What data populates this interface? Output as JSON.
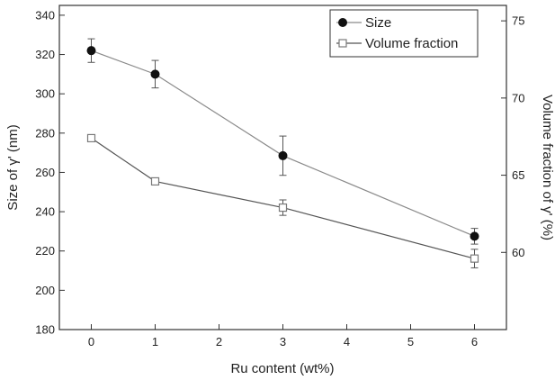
{
  "chart_data": {
    "type": "line",
    "title": "",
    "x": [
      0,
      1,
      3,
      6
    ],
    "xlabel": "Ru content (wt%)",
    "xlim": [
      -0.5,
      6.5
    ],
    "xticks": [
      0,
      1,
      2,
      3,
      4,
      5,
      6
    ],
    "ylabel_left": "Size of γ' (nm)",
    "ylim_left": [
      180,
      345
    ],
    "yticks_left": [
      180,
      200,
      220,
      240,
      260,
      280,
      300,
      320,
      340
    ],
    "ylabel_right": "Volume fraction of γ' (%)",
    "ylim_right": [
      55,
      76
    ],
    "yticks_right": [
      60,
      65,
      70,
      75
    ],
    "grid": false,
    "legend_position": "top-right",
    "series": [
      {
        "name": "Size",
        "axis": "left",
        "marker": "filled-circle",
        "values": [
          322,
          310,
          268.5,
          227.5
        ],
        "errors": [
          6,
          7,
          10,
          4
        ]
      },
      {
        "name": "Volume fraction",
        "axis": "right",
        "marker": "open-square",
        "values": [
          67.4,
          64.6,
          62.9,
          59.6
        ],
        "errors": [
          0.2,
          0.1,
          0.5,
          0.6
        ]
      }
    ],
    "colors": {
      "size_line": "#8a8a8a",
      "size_marker": "#111111",
      "volume_line": "#555555",
      "volume_marker": "#7a7a7a"
    }
  }
}
